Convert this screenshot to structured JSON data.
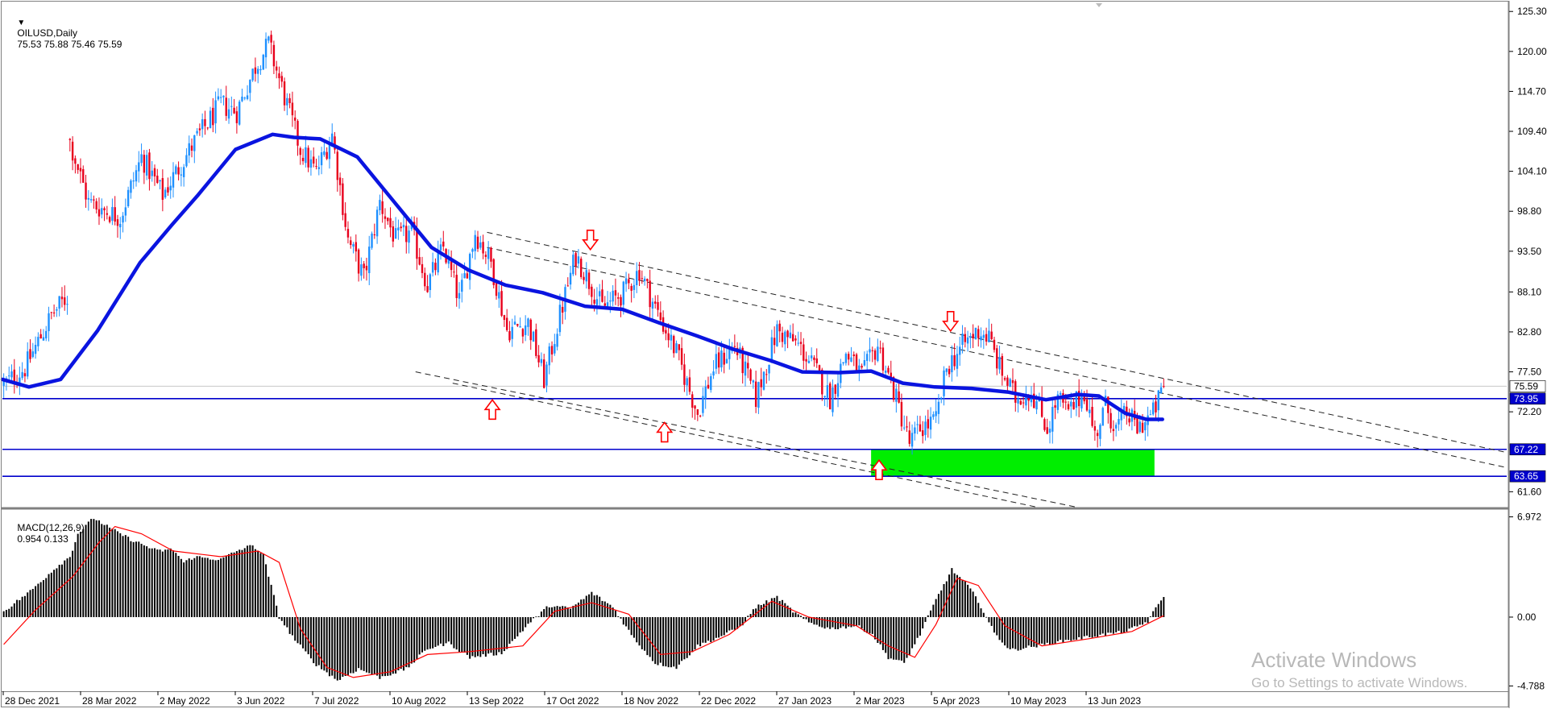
{
  "header": {
    "symbol": "OILUSD,Daily",
    "ohlc": "75.53 75.88 75.46 75.59"
  },
  "macd_header": {
    "label": "MACD(12,26,9)",
    "values": "0.954 0.133"
  },
  "watermark": {
    "title": "Activate Windows",
    "subtitle": "Go to Settings to activate Windows."
  },
  "colors": {
    "bull_candle": "#1e90ff",
    "bear_candle": "#e8001c",
    "moving_average": "#0a14e0",
    "horizontal_lines": "#0000cc",
    "support_zone": "#00ee00",
    "arrows": "#ff0000",
    "macd_histogram": "#000000",
    "macd_signal": "#ff0000",
    "price_tag": "#0000cc"
  },
  "chart_data": [
    {
      "type": "candlestick",
      "title": "OILUSD,Daily",
      "ylim": [
        59.5,
        126.5
      ],
      "y_ticks": [
        "125.30",
        "120.00",
        "114.70",
        "109.40",
        "104.10",
        "98.80",
        "93.50",
        "88.10",
        "82.80",
        "77.50",
        "72.20",
        "61.60"
      ],
      "x_ticks": [
        "28 Dec 2021",
        "28 Mar 2022",
        "2 May 2022",
        "3 Jun 2022",
        "7 Jul 2022",
        "10 Aug 2022",
        "13 Sep 2022",
        "17 Oct 2022",
        "18 Nov 2022",
        "22 Dec 2022",
        "27 Jan 2023",
        "2 Mar 2023",
        "5 Apr 2023",
        "10 May 2023",
        "13 Jun 2023"
      ],
      "price_path": [
        [
          0,
          75.8
        ],
        [
          8,
          78
        ],
        [
          18,
          85
        ],
        [
          24,
          87.5
        ],
        [
          25,
          108
        ],
        [
          32,
          100
        ],
        [
          44,
          98
        ],
        [
          52,
          106
        ],
        [
          60,
          101
        ],
        [
          72,
          108
        ],
        [
          82,
          113
        ],
        [
          88,
          112
        ],
        [
          95,
          118
        ],
        [
          100,
          121
        ],
        [
          106,
          114
        ],
        [
          112,
          107
        ],
        [
          118,
          104
        ],
        [
          124,
          109
        ],
        [
          130,
          95
        ],
        [
          136,
          90
        ],
        [
          142,
          100
        ],
        [
          148,
          95
        ],
        [
          154,
          96
        ],
        [
          160,
          89
        ],
        [
          166,
          94
        ],
        [
          172,
          87
        ],
        [
          178,
          96
        ],
        [
          184,
          92
        ],
        [
          190,
          83
        ],
        [
          198,
          84
        ],
        [
          204,
          76.5
        ],
        [
          210,
          85
        ],
        [
          216,
          93
        ],
        [
          226,
          86
        ],
        [
          234,
          88
        ],
        [
          240,
          91
        ],
        [
          246,
          86
        ],
        [
          254,
          80
        ],
        [
          262,
          72
        ],
        [
          268,
          78
        ],
        [
          276,
          81
        ],
        [
          284,
          74
        ],
        [
          292,
          83
        ],
        [
          300,
          81
        ],
        [
          306,
          78
        ],
        [
          312,
          74
        ],
        [
          318,
          80
        ],
        [
          324,
          77
        ],
        [
          330,
          81
        ],
        [
          336,
          75
        ],
        [
          342,
          68
        ],
        [
          346,
          70
        ],
        [
          352,
          71
        ],
        [
          356,
          78
        ],
        [
          362,
          81
        ],
        [
          368,
          83
        ],
        [
          372,
          82
        ],
        [
          376,
          78
        ],
        [
          382,
          74
        ],
        [
          388,
          75
        ],
        [
          394,
          70
        ],
        [
          398,
          74
        ],
        [
          402,
          72
        ],
        [
          408,
          75
        ],
        [
          412,
          69
        ],
        [
          416,
          73
        ],
        [
          420,
          70
        ],
        [
          424,
          72
        ],
        [
          428,
          70
        ],
        [
          434,
          72
        ],
        [
          438,
          75.6
        ]
      ],
      "moving_average": [
        [
          0,
          76.5
        ],
        [
          10,
          75.5
        ],
        [
          22,
          76.5
        ],
        [
          36,
          83
        ],
        [
          52,
          92
        ],
        [
          64,
          97
        ],
        [
          74,
          101
        ],
        [
          88,
          107
        ],
        [
          102,
          109
        ],
        [
          110,
          108.6
        ],
        [
          120,
          108.4
        ],
        [
          134,
          106
        ],
        [
          148,
          100
        ],
        [
          162,
          94
        ],
        [
          176,
          91
        ],
        [
          190,
          89
        ],
        [
          204,
          88
        ],
        [
          220,
          86.2
        ],
        [
          234,
          85.8
        ],
        [
          248,
          84
        ],
        [
          262,
          82.3
        ],
        [
          276,
          80.5
        ],
        [
          290,
          79
        ],
        [
          302,
          77.5
        ],
        [
          316,
          77.4
        ],
        [
          328,
          77.6
        ],
        [
          340,
          76
        ],
        [
          352,
          75.5
        ],
        [
          366,
          75.3
        ],
        [
          380,
          74.8
        ],
        [
          394,
          73.8
        ],
        [
          406,
          74.5
        ],
        [
          414,
          74.3
        ],
        [
          424,
          72
        ],
        [
          432,
          71.2
        ],
        [
          438,
          71.2
        ]
      ],
      "horizontal_levels": [
        {
          "price": 73.95,
          "tag": "73.95"
        },
        {
          "price": 67.22,
          "tag": "67.22"
        },
        {
          "price": 63.65,
          "tag": "63.65"
        }
      ],
      "current_price": {
        "price": 75.59,
        "tag": "75.59"
      },
      "support_zone": {
        "x_range": [
          328,
          435
        ],
        "price_range": [
          63.65,
          67.22
        ]
      },
      "channel_lines": [
        {
          "from": [
            183,
            96
          ],
          "to": [
            568,
            66.8
          ]
        },
        {
          "from": [
            183,
            94
          ],
          "to": [
            568,
            64.8
          ]
        },
        {
          "from": [
            156,
            77.5
          ],
          "to": [
            405,
            59.6
          ]
        },
        {
          "from": [
            170,
            76
          ],
          "to": [
            390,
            59.6
          ]
        }
      ],
      "arrows": [
        {
          "dir": "down",
          "x": 222,
          "price": 95
        },
        {
          "dir": "down",
          "x": 358,
          "price": 84.2
        },
        {
          "dir": "up",
          "x": 185,
          "price": 72.5
        },
        {
          "dir": "up",
          "x": 250,
          "price": 69.5
        },
        {
          "dir": "up",
          "x": 331,
          "price": 64.5
        }
      ],
      "x_range": [
        0,
        568
      ]
    },
    {
      "type": "bar",
      "title": "MACD(12,26,9)",
      "ylim": [
        -5.1,
        7.45
      ],
      "y_ticks": [
        "6.972",
        "0.00",
        "-4.788"
      ],
      "histogram_path": [
        [
          0,
          0.4
        ],
        [
          10,
          1.8
        ],
        [
          20,
          3.5
        ],
        [
          25,
          4.2
        ],
        [
          28,
          5.8
        ],
        [
          34,
          6.9
        ],
        [
          40,
          6.2
        ],
        [
          48,
          5.4
        ],
        [
          58,
          4.6
        ],
        [
          64,
          4.7
        ],
        [
          68,
          3.8
        ],
        [
          72,
          4.2
        ],
        [
          82,
          4.0
        ],
        [
          88,
          4.6
        ],
        [
          94,
          5.0
        ],
        [
          98,
          4.3
        ],
        [
          104,
          0.0
        ],
        [
          110,
          -1.6
        ],
        [
          118,
          -3.3
        ],
        [
          126,
          -4.4
        ],
        [
          134,
          -3.6
        ],
        [
          142,
          -4.2
        ],
        [
          152,
          -3.6
        ],
        [
          160,
          -2.2
        ],
        [
          168,
          -1.8
        ],
        [
          176,
          -2.8
        ],
        [
          188,
          -2.5
        ],
        [
          198,
          -0.5
        ],
        [
          206,
          0.8
        ],
        [
          214,
          0.6
        ],
        [
          222,
          1.7
        ],
        [
          230,
          0.7
        ],
        [
          238,
          -1.5
        ],
        [
          246,
          -3.2
        ],
        [
          254,
          -3.5
        ],
        [
          262,
          -2.0
        ],
        [
          270,
          -1.4
        ],
        [
          278,
          -0.7
        ],
        [
          284,
          0.7
        ],
        [
          292,
          1.4
        ],
        [
          298,
          0.4
        ],
        [
          304,
          -0.4
        ],
        [
          312,
          -0.8
        ],
        [
          322,
          -0.6
        ],
        [
          328,
          -1.2
        ],
        [
          334,
          -2.8
        ],
        [
          340,
          -3.2
        ],
        [
          346,
          -1.2
        ],
        [
          352,
          1.2
        ],
        [
          358,
          3.3
        ],
        [
          364,
          2.2
        ],
        [
          368,
          1.1
        ],
        [
          374,
          -1.1
        ],
        [
          380,
          -2.3
        ],
        [
          390,
          -2.0
        ],
        [
          402,
          -1.6
        ],
        [
          412,
          -1.3
        ],
        [
          424,
          -1.0
        ],
        [
          432,
          -0.3
        ],
        [
          438,
          1.5
        ]
      ],
      "signal_path": [
        [
          0,
          -1.9
        ],
        [
          12,
          0.5
        ],
        [
          26,
          2.8
        ],
        [
          36,
          5.2
        ],
        [
          42,
          6.3
        ],
        [
          52,
          5.8
        ],
        [
          64,
          4.6
        ],
        [
          82,
          4.2
        ],
        [
          96,
          4.6
        ],
        [
          104,
          3.8
        ],
        [
          112,
          -0.8
        ],
        [
          122,
          -3.5
        ],
        [
          132,
          -4.2
        ],
        [
          146,
          -3.8
        ],
        [
          160,
          -2.6
        ],
        [
          176,
          -2.4
        ],
        [
          196,
          -2.0
        ],
        [
          208,
          0.4
        ],
        [
          222,
          1.0
        ],
        [
          236,
          0.2
        ],
        [
          248,
          -2.6
        ],
        [
          260,
          -2.4
        ],
        [
          274,
          -1.2
        ],
        [
          290,
          1.1
        ],
        [
          304,
          0.0
        ],
        [
          322,
          -0.6
        ],
        [
          334,
          -2.0
        ],
        [
          344,
          -2.8
        ],
        [
          352,
          -0.5
        ],
        [
          360,
          2.7
        ],
        [
          368,
          2.2
        ],
        [
          378,
          -0.6
        ],
        [
          392,
          -2.0
        ],
        [
          410,
          -1.5
        ],
        [
          426,
          -1.0
        ],
        [
          438,
          0.1
        ]
      ],
      "x_range": [
        0,
        568
      ]
    }
  ]
}
